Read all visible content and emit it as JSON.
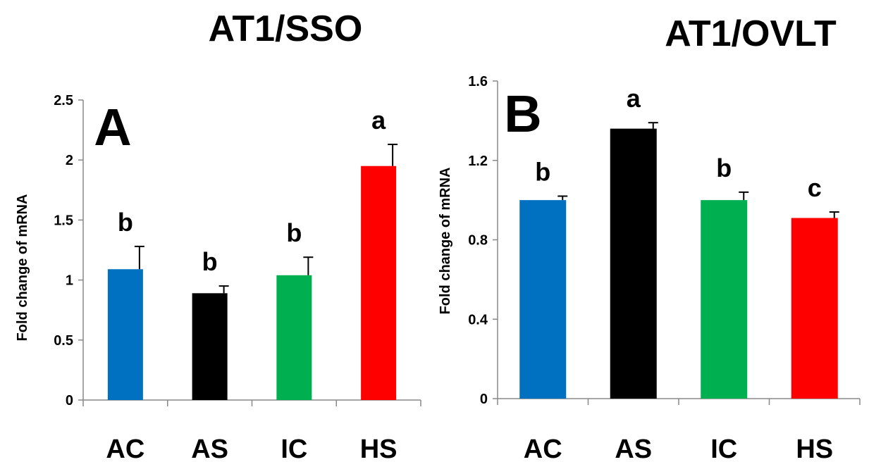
{
  "chart_data": [
    {
      "type": "bar",
      "title": "AT1/SSO",
      "panel_label": "A",
      "ylabel": "Fold change of mRNA",
      "xlabel": "",
      "ylim": [
        0,
        2.5
      ],
      "yticks": [
        "0",
        "0.5",
        "1",
        "1.5",
        "2",
        "2.5"
      ],
      "categories": [
        "AC",
        "AS",
        "IC",
        "HS"
      ],
      "values": [
        1.09,
        0.89,
        1.04,
        1.95
      ],
      "errors": [
        0.19,
        0.06,
        0.15,
        0.18
      ],
      "colors": [
        "#0070c0",
        "#000000",
        "#00b050",
        "#ff0000"
      ],
      "significance": [
        "b",
        "b",
        "b",
        "a"
      ],
      "grid": false
    },
    {
      "type": "bar",
      "title": "AT1/OVLT",
      "panel_label": "B",
      "ylabel": "Fold change of mRNA",
      "xlabel": "",
      "ylim": [
        0,
        1.6
      ],
      "yticks": [
        "0",
        "0.4",
        "0.8",
        "1.2",
        "1.6"
      ],
      "categories": [
        "AC",
        "AS",
        "IC",
        "HS"
      ],
      "values": [
        1.0,
        1.36,
        1.0,
        0.91
      ],
      "errors": [
        0.02,
        0.03,
        0.04,
        0.03
      ],
      "colors": [
        "#0070c0",
        "#000000",
        "#00b050",
        "#ff0000"
      ],
      "significance": [
        "b",
        "a",
        "b",
        "c"
      ],
      "grid": false
    }
  ]
}
